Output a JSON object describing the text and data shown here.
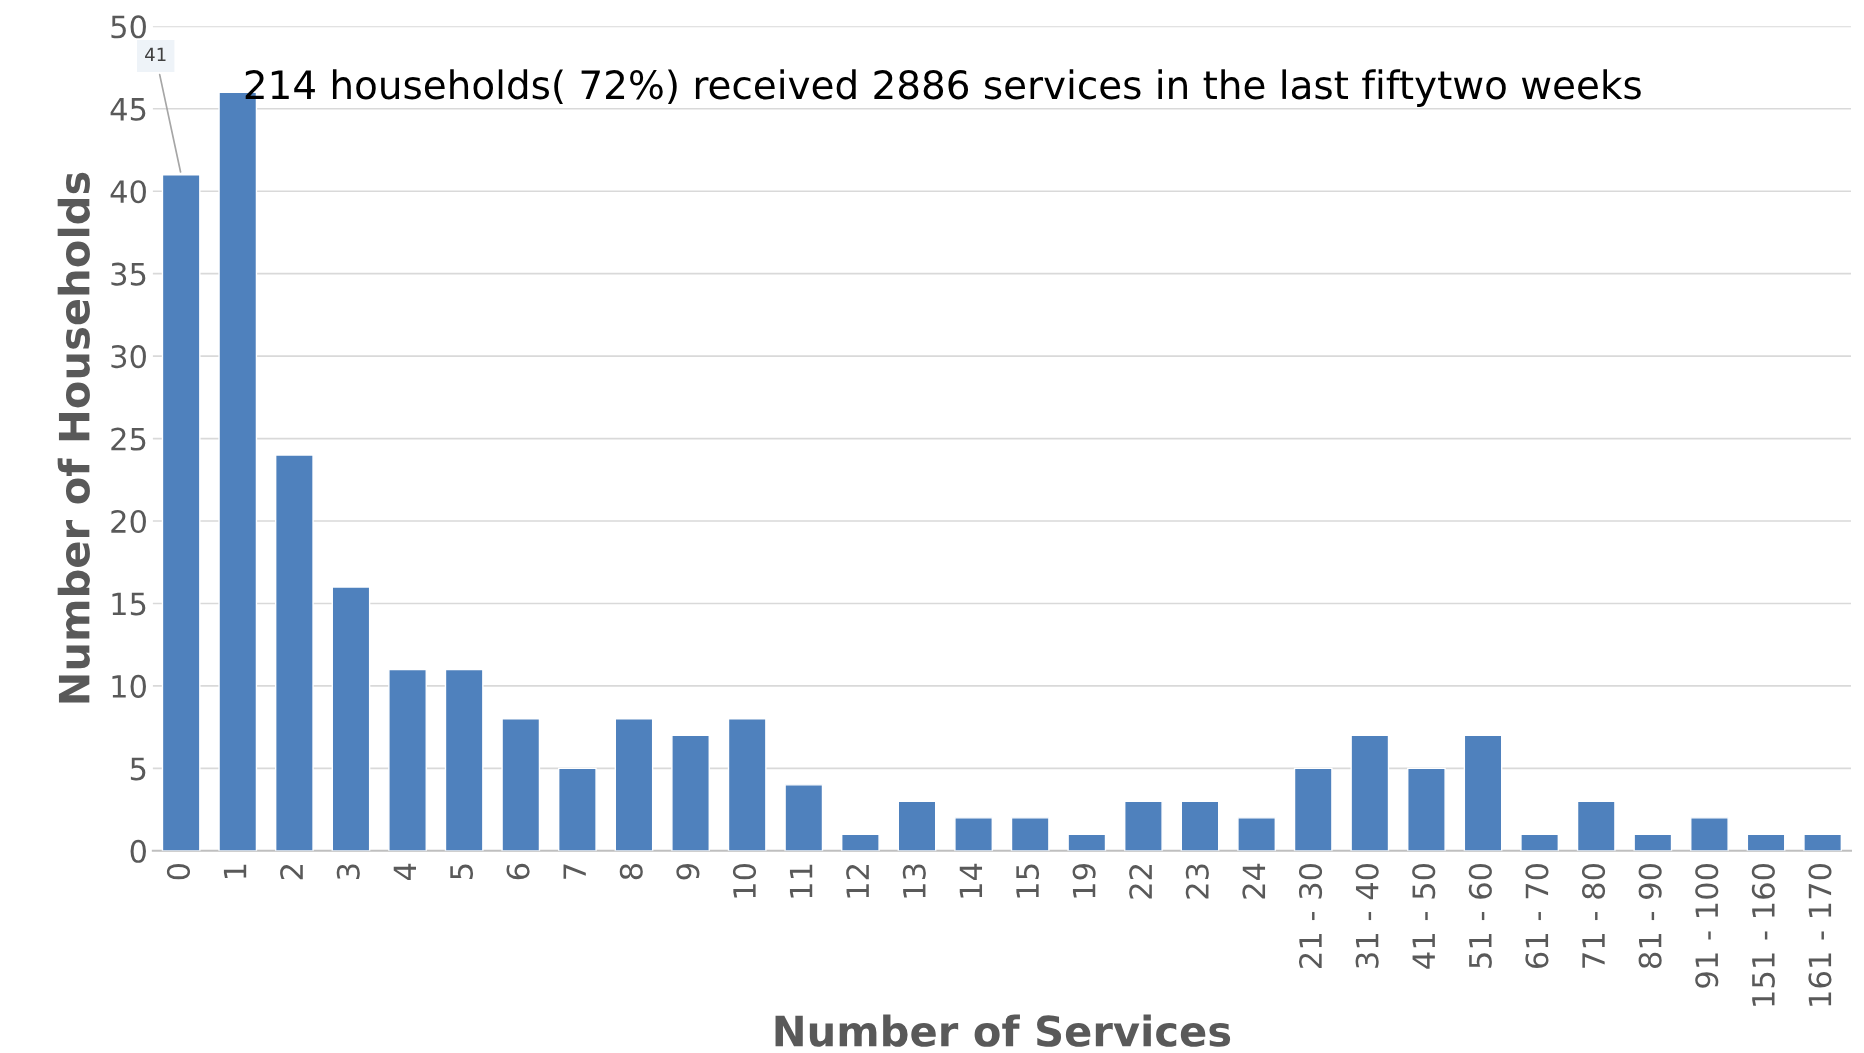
{
  "chart_data": {
    "type": "bar",
    "xlabel": "Number of Services",
    "ylabel": "Number of Households",
    "categories": [
      "0",
      "1",
      "2",
      "3",
      "4",
      "5",
      "6",
      "7",
      "8",
      "9",
      "10",
      "11",
      "12",
      "13",
      "14",
      "15",
      "19",
      "22",
      "23",
      "24",
      "21 - 30",
      "31 - 40",
      "41 - 50",
      "51 - 60",
      "61 - 70",
      "71 - 80",
      "81 - 90",
      "91 - 100",
      "151 - 160",
      "161 - 170"
    ],
    "values": [
      41,
      46,
      24,
      16,
      11,
      11,
      8,
      5,
      8,
      7,
      8,
      4,
      1,
      3,
      2,
      2,
      1,
      3,
      3,
      2,
      5,
      7,
      5,
      7,
      1,
      3,
      1,
      2,
      1,
      1
    ],
    "color": "#4f81bd",
    "ylim": [
      0,
      50
    ],
    "yticks": [
      0,
      5,
      10,
      15,
      20,
      25,
      30,
      35,
      40,
      45,
      50
    ],
    "grid": "y",
    "annotations": [
      "214 households( 72%) received 2886 services in the last fiftytwo weeks",
      {
        "text": "41",
        "x": "0",
        "y": 41
      }
    ]
  }
}
